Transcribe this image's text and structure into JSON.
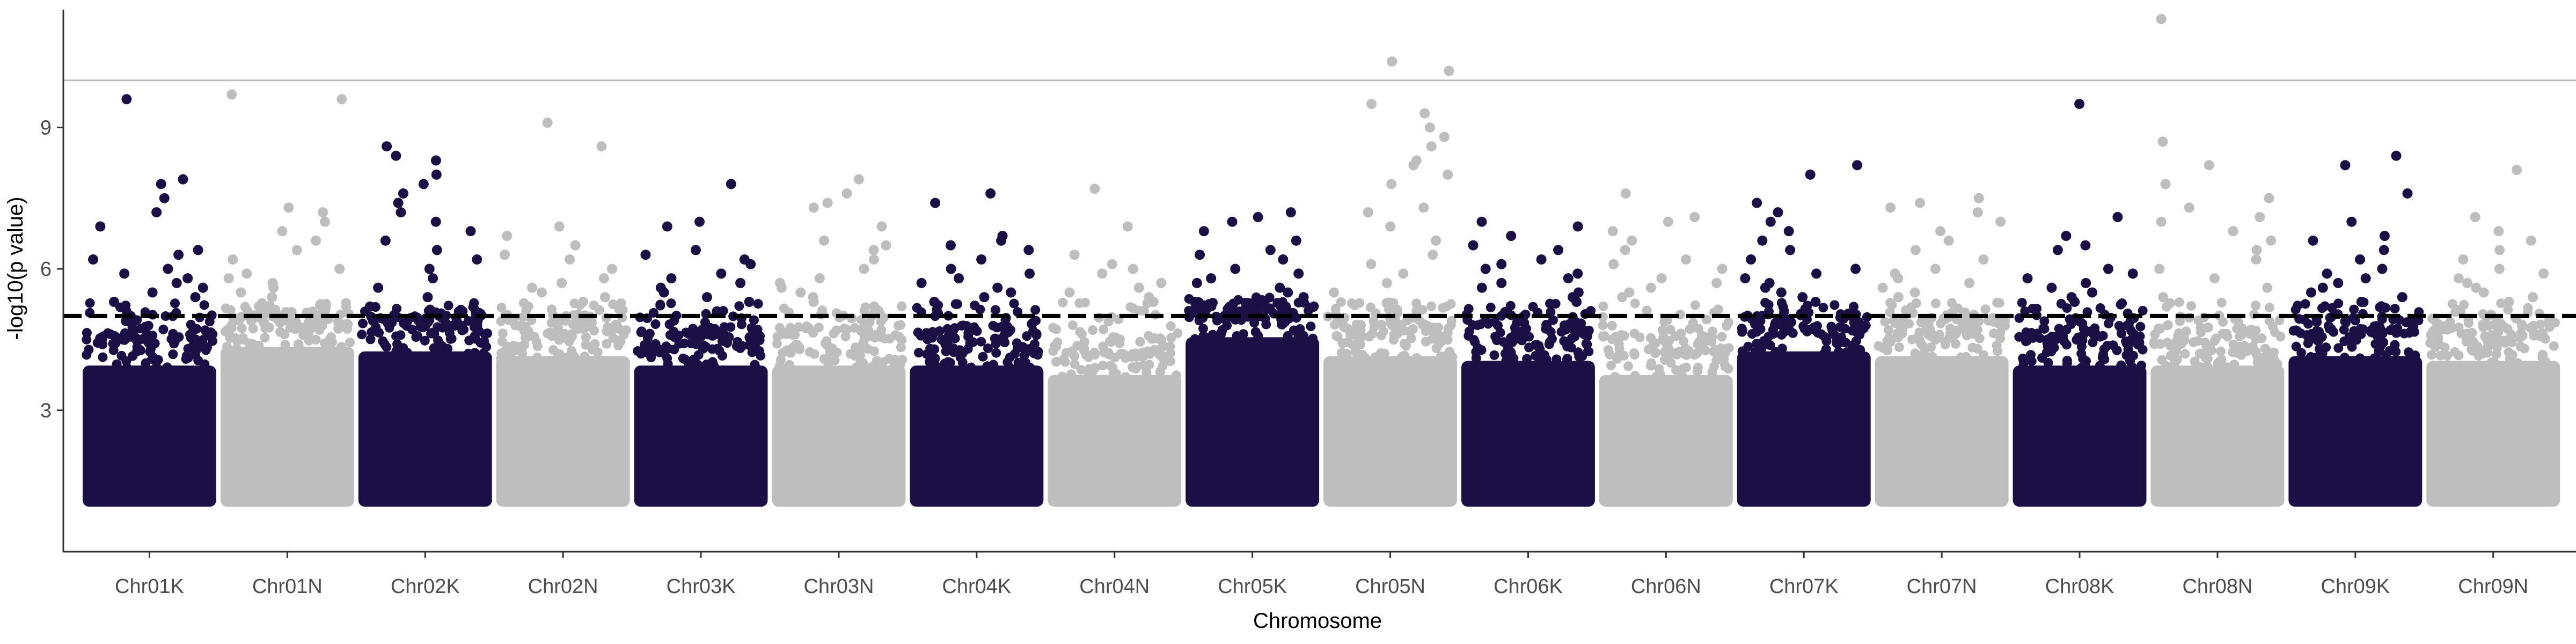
{
  "chart_data": {
    "type": "scatter",
    "title": "",
    "xlabel": "Chromosome",
    "ylabel": "-log10(p value)",
    "categories": [
      "Chr01K",
      "Chr01N",
      "Chr02K",
      "Chr02N",
      "Chr03K",
      "Chr03N",
      "Chr04K",
      "Chr04N",
      "Chr05K",
      "Chr05N",
      "Chr06K",
      "Chr06N",
      "Chr07K",
      "Chr07N",
      "Chr08K",
      "Chr08N",
      "Chr09K",
      "Chr09N"
    ],
    "y_ticks": [
      3,
      6,
      9
    ],
    "ylim": [
      0.0,
      11.5
    ],
    "grid": false,
    "legend": "none",
    "thresholds": [
      {
        "value": 5.0,
        "style": "dashed",
        "color": "#000000"
      },
      {
        "value": 10.0,
        "style": "solid",
        "color": "#bdbdbd"
      }
    ],
    "colors": {
      "odd_chromosomes": "#1c0f45",
      "even_chromosomes": "#bebebe"
    },
    "point_value_range": [
      1.0,
      11.3
    ],
    "series": [
      {
        "category": "Chr01K",
        "color": "#1c0f45",
        "bulk_top": 4.3,
        "peaks": [
          9.6,
          7.9,
          7.8,
          7.5,
          7.2,
          6.9,
          6.4,
          6.3,
          6.2,
          6.0,
          5.9,
          5.8,
          5.7,
          5.6,
          5.5,
          5.4,
          5.3
        ]
      },
      {
        "category": "Chr01N",
        "color": "#bebebe",
        "bulk_top": 4.7,
        "peaks": [
          9.7,
          9.6,
          7.3,
          7.2,
          7.0,
          6.8,
          6.6,
          6.4,
          6.2,
          6.0,
          5.9,
          5.8,
          5.7,
          5.6,
          5.5,
          5.4
        ]
      },
      {
        "category": "Chr02K",
        "color": "#1c0f45",
        "bulk_top": 4.6,
        "peaks": [
          8.6,
          8.4,
          8.3,
          8.0,
          7.8,
          7.6,
          7.4,
          7.2,
          7.0,
          6.8,
          6.6,
          6.4,
          6.2,
          6.0,
          5.8,
          5.6,
          5.4,
          5.2
        ]
      },
      {
        "category": "Chr02N",
        "color": "#bebebe",
        "bulk_top": 4.5,
        "peaks": [
          9.1,
          8.6,
          6.9,
          6.7,
          6.5,
          6.3,
          6.2,
          6.0,
          5.8,
          5.7,
          5.6,
          5.5,
          5.4,
          5.3
        ]
      },
      {
        "category": "Chr03K",
        "color": "#1c0f45",
        "bulk_top": 4.3,
        "peaks": [
          7.8,
          7.0,
          6.9,
          6.4,
          6.3,
          6.2,
          6.1,
          5.9,
          5.8,
          5.7,
          5.6,
          5.5,
          5.4,
          5.3
        ]
      },
      {
        "category": "Chr03N",
        "color": "#bebebe",
        "bulk_top": 4.3,
        "peaks": [
          7.9,
          7.6,
          7.4,
          7.3,
          6.9,
          6.6,
          6.5,
          6.4,
          6.2,
          6.0,
          5.8,
          5.7,
          5.6,
          5.5,
          5.4,
          5.3
        ]
      },
      {
        "category": "Chr04K",
        "color": "#1c0f45",
        "bulk_top": 4.3,
        "peaks": [
          7.6,
          7.4,
          6.7,
          6.6,
          6.5,
          6.4,
          6.2,
          6.0,
          5.9,
          5.8,
          5.7,
          5.6,
          5.5,
          5.4,
          5.3
        ]
      },
      {
        "category": "Chr04N",
        "color": "#bebebe",
        "bulk_top": 4.1,
        "peaks": [
          7.7,
          6.9,
          6.3,
          6.1,
          6.0,
          5.9,
          5.7,
          5.6,
          5.5,
          5.4,
          5.3
        ]
      },
      {
        "category": "Chr05K",
        "color": "#1c0f45",
        "bulk_top": 4.9,
        "peaks": [
          7.2,
          7.1,
          7.0,
          6.8,
          6.6,
          6.4,
          6.3,
          6.2,
          6.0,
          5.9,
          5.8,
          5.7,
          5.6,
          5.5,
          5.4,
          5.3
        ]
      },
      {
        "category": "Chr05N",
        "color": "#bebebe",
        "bulk_top": 4.5,
        "peaks": [
          10.4,
          10.2,
          9.5,
          9.3,
          9.0,
          8.8,
          8.6,
          8.3,
          8.2,
          8.0,
          7.8,
          7.3,
          7.2,
          6.9,
          6.6,
          6.3,
          6.1,
          5.9,
          5.7,
          5.5
        ]
      },
      {
        "category": "Chr06K",
        "color": "#1c0f45",
        "bulk_top": 4.4,
        "peaks": [
          7.0,
          6.9,
          6.7,
          6.5,
          6.4,
          6.2,
          6.1,
          6.0,
          5.9,
          5.8,
          5.7,
          5.6,
          5.5,
          5.4,
          5.3
        ]
      },
      {
        "category": "Chr06N",
        "color": "#bebebe",
        "bulk_top": 4.1,
        "peaks": [
          7.6,
          7.1,
          7.0,
          6.8,
          6.6,
          6.4,
          6.2,
          6.1,
          6.0,
          5.8,
          5.7,
          5.6,
          5.5,
          5.4
        ]
      },
      {
        "category": "Chr07K",
        "color": "#1c0f45",
        "bulk_top": 4.6,
        "peaks": [
          8.2,
          8.0,
          7.4,
          7.2,
          7.0,
          6.8,
          6.6,
          6.4,
          6.2,
          6.0,
          5.9,
          5.8,
          5.7,
          5.6,
          5.5,
          5.4,
          5.3
        ]
      },
      {
        "category": "Chr07N",
        "color": "#bebebe",
        "bulk_top": 4.5,
        "peaks": [
          7.5,
          7.4,
          7.3,
          7.2,
          7.0,
          6.8,
          6.6,
          6.4,
          6.2,
          6.0,
          5.9,
          5.8,
          5.7,
          5.6,
          5.5,
          5.4
        ]
      },
      {
        "category": "Chr08K",
        "color": "#1c0f45",
        "bulk_top": 4.3,
        "peaks": [
          9.5,
          7.1,
          6.7,
          6.5,
          6.4,
          6.0,
          5.9,
          5.8,
          5.7,
          5.6,
          5.5,
          5.4,
          5.3
        ]
      },
      {
        "category": "Chr08N",
        "color": "#bebebe",
        "bulk_top": 4.3,
        "peaks": [
          11.3,
          8.7,
          8.2,
          7.8,
          7.5,
          7.3,
          7.1,
          7.0,
          6.8,
          6.6,
          6.4,
          6.2,
          6.0,
          5.8,
          5.6,
          5.4
        ]
      },
      {
        "category": "Chr09K",
        "color": "#1c0f45",
        "bulk_top": 4.5,
        "peaks": [
          8.4,
          8.2,
          7.6,
          7.0,
          6.7,
          6.6,
          6.4,
          6.2,
          6.0,
          5.9,
          5.8,
          5.7,
          5.6,
          5.5,
          5.4,
          5.3
        ]
      },
      {
        "category": "Chr09N",
        "color": "#bebebe",
        "bulk_top": 4.4,
        "peaks": [
          8.1,
          7.1,
          6.8,
          6.6,
          6.4,
          6.2,
          6.0,
          5.9,
          5.8,
          5.7,
          5.6,
          5.5,
          5.4,
          5.3
        ]
      }
    ]
  }
}
